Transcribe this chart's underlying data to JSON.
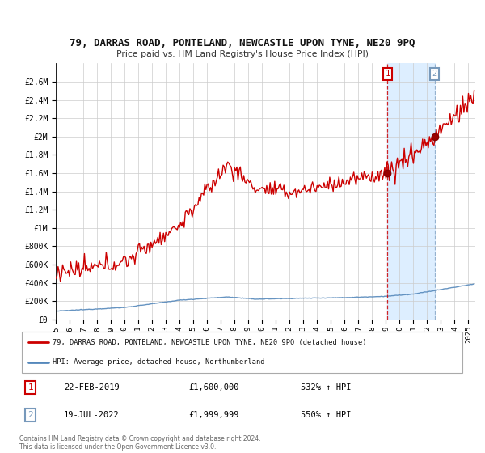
{
  "title_line1": "79, DARRAS ROAD, PONTELAND, NEWCASTLE UPON TYNE, NE20 9PQ",
  "title_line2": "Price paid vs. HM Land Registry's House Price Index (HPI)",
  "legend_line1": "79, DARRAS ROAD, PONTELAND, NEWCASTLE UPON TYNE, NE20 9PQ (detached house)",
  "legend_line2": "HPI: Average price, detached house, Northumberland",
  "ann1_date": "22-FEB-2019",
  "ann1_price": "£1,600,000",
  "ann1_hpi": "532% ↑ HPI",
  "ann2_date": "19-JUL-2022",
  "ann2_price": "£1,999,999",
  "ann2_hpi": "550% ↑ HPI",
  "footer": "Contains HM Land Registry data © Crown copyright and database right 2024.\nThis data is licensed under the Open Government Licence v3.0.",
  "prop_color": "#cc0000",
  "hpi_color": "#5588bb",
  "bg_color": "#ffffff",
  "highlight_color": "#ddeeff",
  "vline1_color": "#cc0000",
  "vline2_color": "#7799bb",
  "sale1_year": 2019.12,
  "sale2_year": 2022.54,
  "sale1_val": 1600000,
  "sale2_val": 1999999,
  "ylim_max": 2800000,
  "xlim_min": 1995,
  "xlim_max": 2025.5,
  "yticks": [
    0,
    200000,
    400000,
    600000,
    800000,
    1000000,
    1200000,
    1400000,
    1600000,
    1800000,
    2000000,
    2200000,
    2400000,
    2600000
  ],
  "ytick_labels": [
    "£0",
    "£200K",
    "£400K",
    "£600K",
    "£800K",
    "£1M",
    "£1.2M",
    "£1.4M",
    "£1.6M",
    "£1.8M",
    "£2M",
    "£2.2M",
    "£2.4M",
    "£2.6M"
  ]
}
